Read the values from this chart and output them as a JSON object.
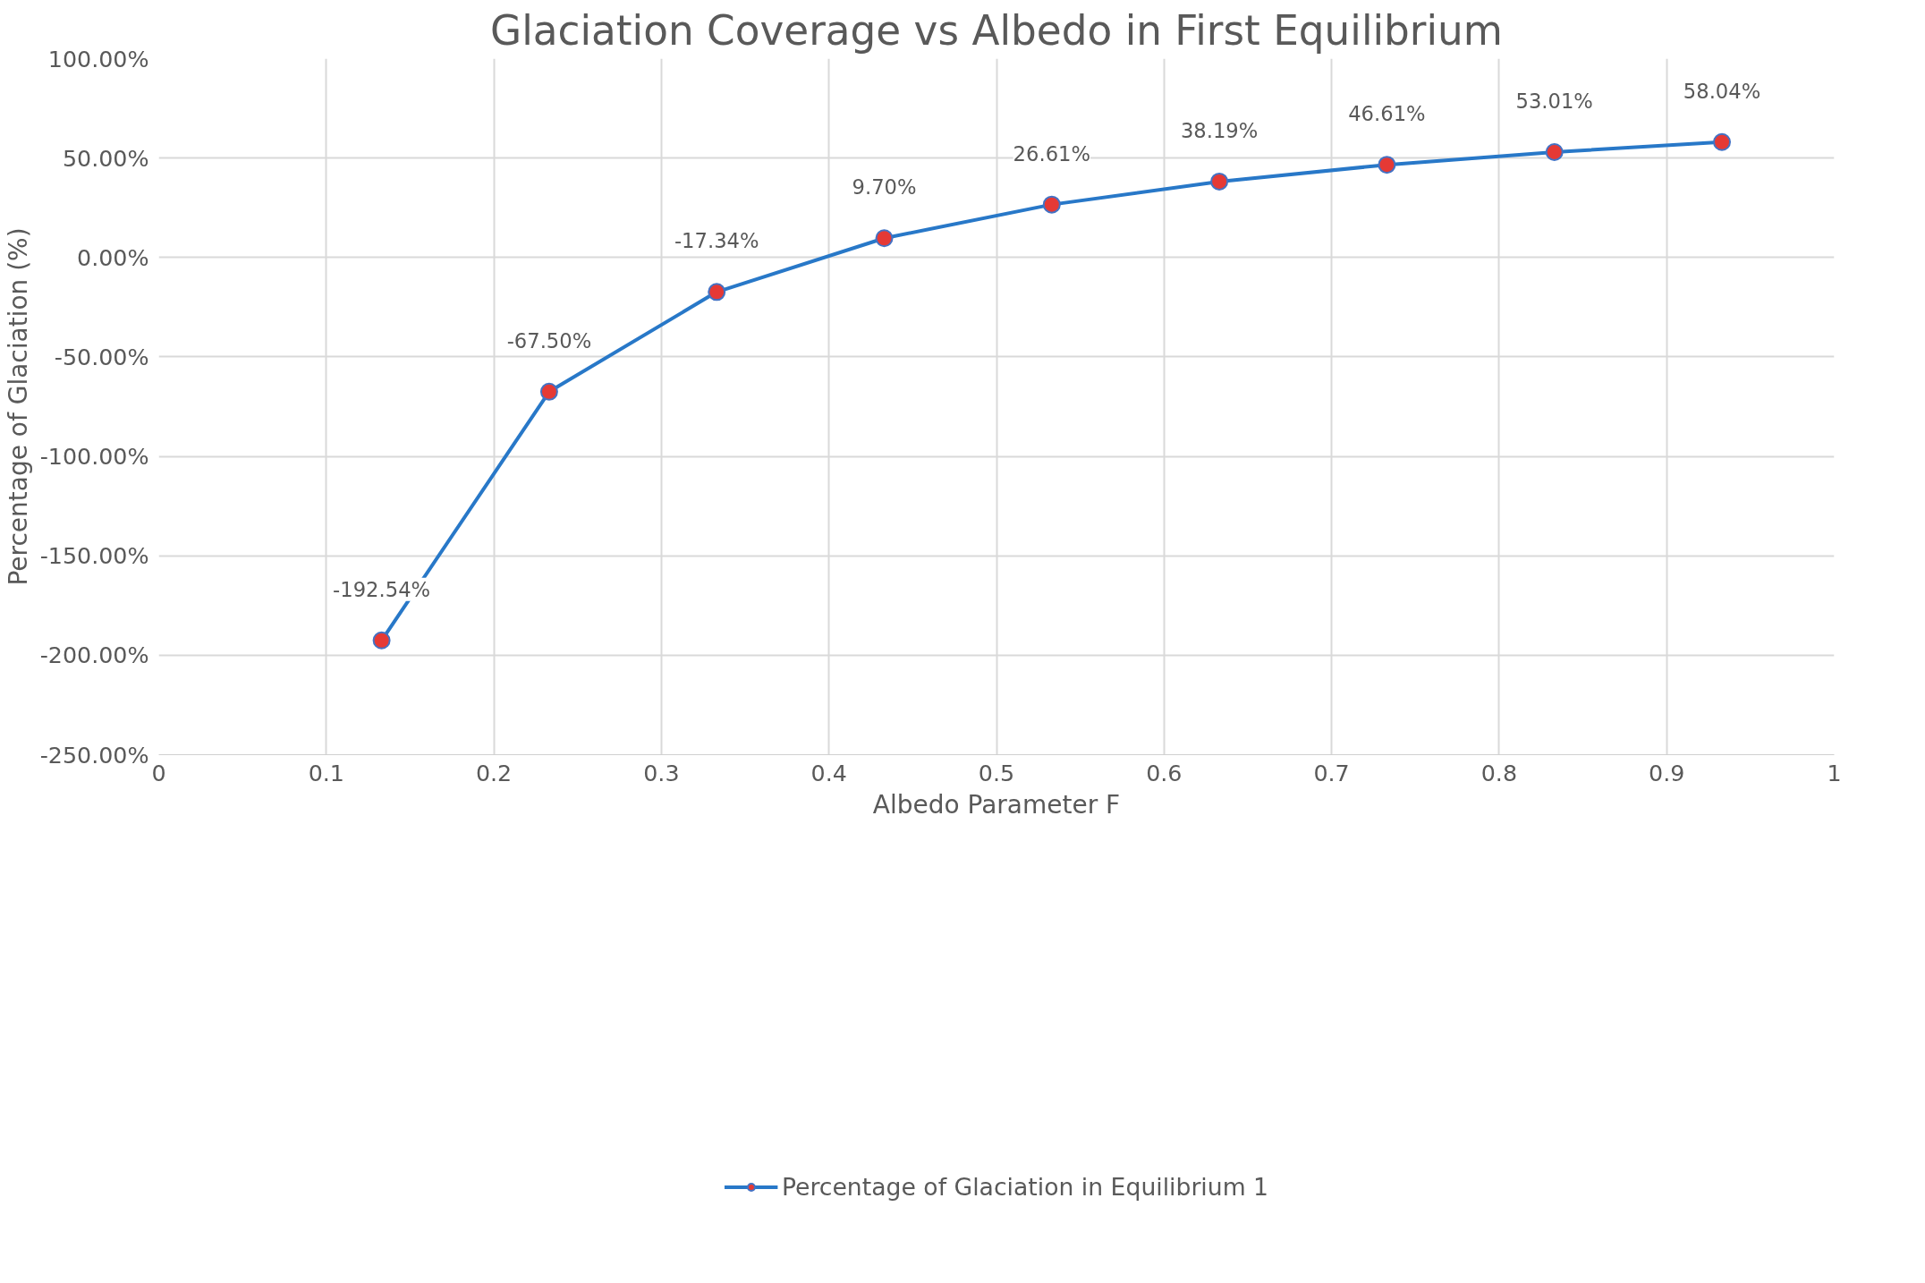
{
  "chart_data": {
    "type": "line",
    "title": "Glaciation Coverage vs Albedo in First Equilibrium",
    "xlabel": "Albedo Parameter F",
    "ylabel": "Percentage of Glaciation (%)",
    "x": [
      0.133,
      0.233,
      0.333,
      0.433,
      0.533,
      0.633,
      0.733,
      0.833,
      0.933
    ],
    "series": [
      {
        "name": "Percentage of Glaciation in Equilibrium 1",
        "color": "#2878c8",
        "values": [
          -192.54,
          -67.5,
          -17.34,
          9.7,
          26.61,
          38.19,
          46.61,
          53.01,
          58.04
        ],
        "value_labels": [
          "-192.54%",
          "-67.50%",
          "-17.34%",
          "9.70%",
          "26.61%",
          "38.19%",
          "46.61%",
          "53.01%",
          "58.04%"
        ]
      }
    ],
    "xlim": [
      0,
      1
    ],
    "xticks": [
      0,
      0.1,
      0.2,
      0.3,
      0.4,
      0.5,
      0.6,
      0.7,
      0.8,
      0.9,
      1
    ],
    "ylim": [
      -250,
      100
    ],
    "yticks": [
      {
        "value": 100,
        "label": "100.00%"
      },
      {
        "value": 50,
        "label": "50.00%"
      },
      {
        "value": 0,
        "label": "0.00%"
      },
      {
        "value": -50,
        "label": "-50.00%"
      },
      {
        "value": -100,
        "label": "-100.00%"
      },
      {
        "value": -150,
        "label": "-150.00%"
      },
      {
        "value": -200,
        "label": "-200.00%"
      },
      {
        "value": -250,
        "label": "-250.00%"
      }
    ],
    "grid": true,
    "legend": "bottom",
    "marker": "circle",
    "line_style": "solid"
  }
}
